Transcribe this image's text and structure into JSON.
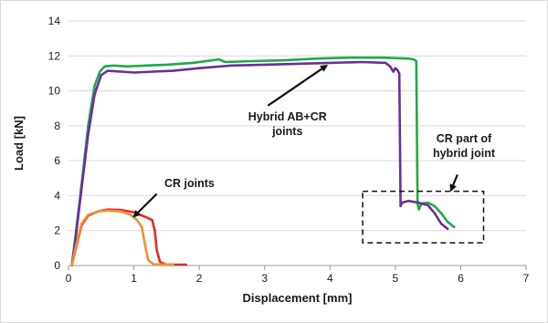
{
  "chart_data": {
    "type": "line",
    "xlabel": "Displacement [mm]",
    "ylabel": "Load [kN]",
    "xlim": [
      0,
      7
    ],
    "ylim": [
      0,
      14
    ],
    "xticks": [
      0,
      1,
      2,
      3,
      4,
      5,
      6,
      7
    ],
    "yticks": [
      0,
      2,
      4,
      6,
      8,
      10,
      12,
      14
    ],
    "grid": "horizontal",
    "legend": "none",
    "series": [
      {
        "color": "#22a84a",
        "points": [
          [
            0.05,
            0
          ],
          [
            0.1,
            1.5
          ],
          [
            0.18,
            4.0
          ],
          [
            0.3,
            8.0
          ],
          [
            0.4,
            10.3
          ],
          [
            0.48,
            11.1
          ],
          [
            0.55,
            11.4
          ],
          [
            0.7,
            11.45
          ],
          [
            0.9,
            11.4
          ],
          [
            1.2,
            11.45
          ],
          [
            1.5,
            11.5
          ],
          [
            1.9,
            11.6
          ],
          [
            2.2,
            11.75
          ],
          [
            2.3,
            11.8
          ],
          [
            2.4,
            11.65
          ],
          [
            2.8,
            11.7
          ],
          [
            3.3,
            11.75
          ],
          [
            3.8,
            11.85
          ],
          [
            4.3,
            11.9
          ],
          [
            4.8,
            11.9
          ],
          [
            5.2,
            11.85
          ],
          [
            5.28,
            11.8
          ],
          [
            5.32,
            11.7
          ],
          [
            5.34,
            3.5
          ],
          [
            5.36,
            3.2
          ],
          [
            5.4,
            3.55
          ],
          [
            5.5,
            3.6
          ],
          [
            5.6,
            3.4
          ],
          [
            5.7,
            3.0
          ],
          [
            5.8,
            2.5
          ],
          [
            5.9,
            2.2
          ]
        ]
      },
      {
        "color": "#6a2f98",
        "points": [
          [
            0.05,
            0
          ],
          [
            0.1,
            1.3
          ],
          [
            0.18,
            3.8
          ],
          [
            0.3,
            7.5
          ],
          [
            0.4,
            9.8
          ],
          [
            0.5,
            10.9
          ],
          [
            0.6,
            11.15
          ],
          [
            0.8,
            11.1
          ],
          [
            1.0,
            11.05
          ],
          [
            1.3,
            11.1
          ],
          [
            1.6,
            11.15
          ],
          [
            2.0,
            11.3
          ],
          [
            2.5,
            11.45
          ],
          [
            3.0,
            11.5
          ],
          [
            3.5,
            11.55
          ],
          [
            4.0,
            11.6
          ],
          [
            4.5,
            11.65
          ],
          [
            4.85,
            11.6
          ],
          [
            4.92,
            11.4
          ],
          [
            4.97,
            11.1
          ],
          [
            5.0,
            11.3
          ],
          [
            5.03,
            11.2
          ],
          [
            5.06,
            11.0
          ],
          [
            5.08,
            3.4
          ],
          [
            5.1,
            3.6
          ],
          [
            5.2,
            3.7
          ],
          [
            5.35,
            3.6
          ],
          [
            5.5,
            3.45
          ],
          [
            5.6,
            3.0
          ],
          [
            5.7,
            2.4
          ],
          [
            5.8,
            2.1
          ]
        ]
      },
      {
        "color": "#e22b22",
        "points": [
          [
            0.05,
            0
          ],
          [
            0.1,
            0.8
          ],
          [
            0.2,
            2.3
          ],
          [
            0.3,
            2.85
          ],
          [
            0.45,
            3.1
          ],
          [
            0.6,
            3.2
          ],
          [
            0.8,
            3.18
          ],
          [
            1.0,
            3.05
          ],
          [
            1.1,
            2.9
          ],
          [
            1.2,
            2.75
          ],
          [
            1.28,
            2.6
          ],
          [
            1.32,
            2.0
          ],
          [
            1.35,
            0.9
          ],
          [
            1.4,
            0.2
          ],
          [
            1.5,
            0.05
          ],
          [
            1.8,
            0.05
          ]
        ]
      },
      {
        "color": "#f0922e",
        "points": [
          [
            0.05,
            0
          ],
          [
            0.1,
            0.9
          ],
          [
            0.2,
            2.4
          ],
          [
            0.3,
            2.9
          ],
          [
            0.45,
            3.1
          ],
          [
            0.6,
            3.15
          ],
          [
            0.8,
            3.1
          ],
          [
            0.95,
            2.9
          ],
          [
            1.05,
            2.6
          ],
          [
            1.12,
            2.2
          ],
          [
            1.18,
            1.0
          ],
          [
            1.22,
            0.3
          ],
          [
            1.3,
            0.08
          ],
          [
            1.6,
            0.05
          ]
        ]
      }
    ],
    "annotations": [
      {
        "text": [
          "Hybrid AB+CR",
          "joints"
        ],
        "at": [
          3.35,
          8.3
        ],
        "arrow_to": [
          3.95,
          11.45
        ]
      },
      {
        "text": [
          "CR joints"
        ],
        "at": [
          1.85,
          4.5
        ],
        "arrow_to": [
          1.0,
          2.8
        ]
      },
      {
        "text": [
          "CR part of",
          "hybrid joint"
        ],
        "at": [
          6.05,
          7.05
        ],
        "arrow_to": [
          5.85,
          4.3
        ]
      }
    ],
    "highlight_box": {
      "x": [
        4.5,
        6.35
      ],
      "y": [
        1.3,
        4.25
      ]
    }
  }
}
